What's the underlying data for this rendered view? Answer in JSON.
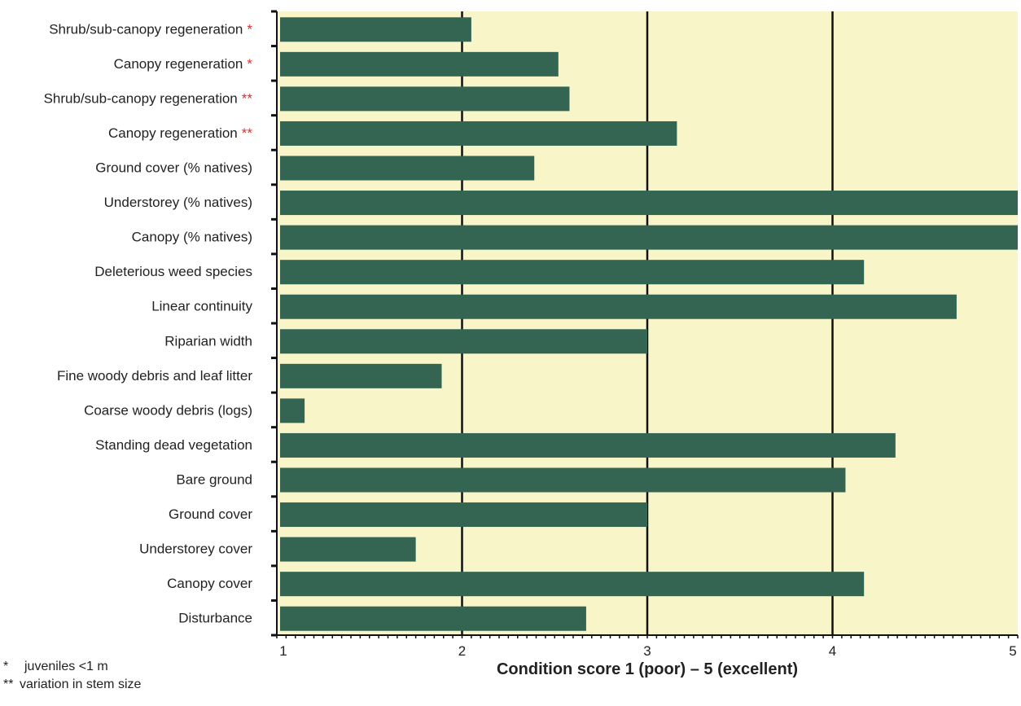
{
  "chart_data": {
    "type": "bar",
    "orientation": "horizontal",
    "categories": [
      {
        "label": "Shrub/sub-canopy regeneration",
        "marker": "*"
      },
      {
        "label": "Canopy regeneration",
        "marker": "*"
      },
      {
        "label": "Shrub/sub-canopy regeneration",
        "marker": "**"
      },
      {
        "label": "Canopy regeneration",
        "marker": "**"
      },
      {
        "label": "Ground cover (% natives)",
        "marker": ""
      },
      {
        "label": "Understorey (% natives)",
        "marker": ""
      },
      {
        "label": "Canopy (% natives)",
        "marker": ""
      },
      {
        "label": "Deleterious weed species",
        "marker": ""
      },
      {
        "label": "Linear continuity",
        "marker": ""
      },
      {
        "label": "Riparian width",
        "marker": ""
      },
      {
        "label": "Fine woody debris and leaf litter",
        "marker": ""
      },
      {
        "label": "Coarse woody debris (logs)",
        "marker": ""
      },
      {
        "label": "Standing dead vegetation",
        "marker": ""
      },
      {
        "label": "Bare ground",
        "marker": ""
      },
      {
        "label": "Ground cover",
        "marker": ""
      },
      {
        "label": "Understorey cover",
        "marker": ""
      },
      {
        "label": "Canopy cover",
        "marker": ""
      },
      {
        "label": "Disturbance",
        "marker": ""
      }
    ],
    "values": [
      2.05,
      2.52,
      2.58,
      3.16,
      2.39,
      5.0,
      5.0,
      4.17,
      4.67,
      3.0,
      1.89,
      1.15,
      4.34,
      4.07,
      3.0,
      1.75,
      4.17,
      2.67
    ],
    "xlim": [
      1,
      5
    ],
    "xticks": [
      "1",
      "2",
      "3",
      "4",
      "5"
    ],
    "xlabel": "Condition score  1 (poor) – 5 (excellent)",
    "ylabel": "",
    "title": "",
    "grid": "vertical lines at 2, 3, 4",
    "colors": {
      "bar": "#336552",
      "background": "#f8f6c8",
      "marker": "#e03030"
    }
  },
  "legend": {
    "items": [
      {
        "marker": "*",
        "text": "juveniles <1 m"
      },
      {
        "marker": "**",
        "text": "variation in stem size"
      }
    ]
  }
}
